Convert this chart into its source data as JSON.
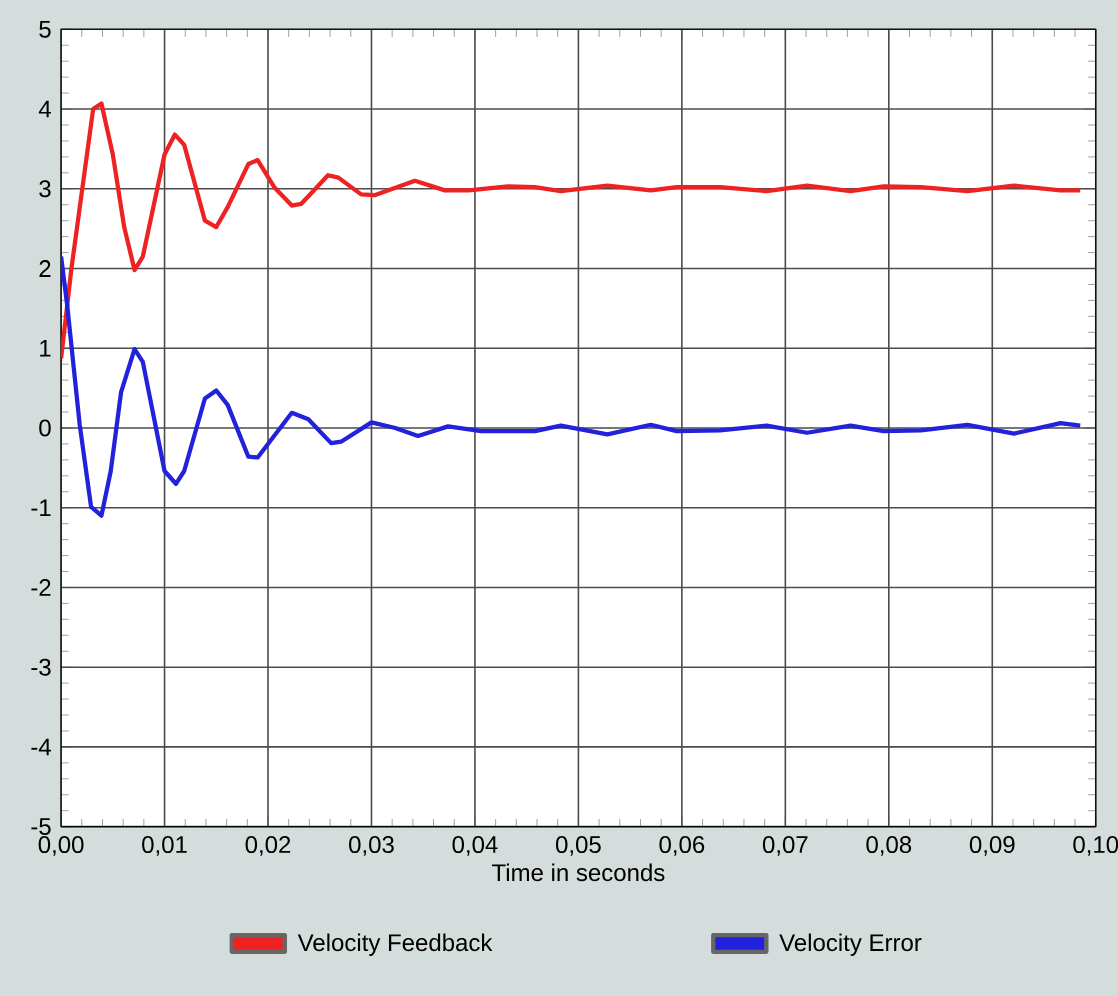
{
  "chart_data": {
    "type": "line",
    "xlabel": "Time in seconds",
    "xlim": [
      0,
      0.1
    ],
    "ylim": [
      -5,
      5
    ],
    "xticks": [
      {
        "value": 0,
        "label": "0,00"
      },
      {
        "value": 0.01,
        "label": "0,01"
      },
      {
        "value": 0.02,
        "label": "0,02"
      },
      {
        "value": 0.03,
        "label": "0,03"
      },
      {
        "value": 0.04,
        "label": "0,04"
      },
      {
        "value": 0.05,
        "label": "0,05"
      },
      {
        "value": 0.06,
        "label": "0,06"
      },
      {
        "value": 0.07,
        "label": "0,07"
      },
      {
        "value": 0.08,
        "label": "0,08"
      },
      {
        "value": 0.09,
        "label": "0,09"
      },
      {
        "value": 0.1,
        "label": "0,10"
      }
    ],
    "yticks": [
      -5,
      -4,
      -3,
      -2,
      -1,
      0,
      1,
      2,
      3,
      4,
      5
    ],
    "grid": true,
    "legend": "bottom",
    "series": [
      {
        "name": "Velocity Feedback",
        "color": "#ee2222",
        "x": [
          0,
          0.001,
          0.0031,
          0.0039,
          0.005,
          0.0061,
          0.0071,
          0.0079,
          0.01,
          0.011,
          0.0119,
          0.0139,
          0.015,
          0.0161,
          0.0181,
          0.019,
          0.0206,
          0.0223,
          0.0232,
          0.0258,
          0.0268,
          0.029,
          0.0303,
          0.0342,
          0.0371,
          0.0394,
          0.0432,
          0.0458,
          0.0483,
          0.0528,
          0.057,
          0.0595,
          0.0637,
          0.0682,
          0.0721,
          0.0763,
          0.0795,
          0.0831,
          0.0876,
          0.0921,
          0.0966,
          0.0985
        ],
        "values": [
          0.87,
          2.0,
          4.0,
          4.07,
          3.43,
          2.52,
          1.98,
          2.15,
          3.43,
          3.68,
          3.55,
          2.6,
          2.52,
          2.77,
          3.31,
          3.36,
          3.02,
          2.79,
          2.81,
          3.17,
          3.14,
          2.93,
          2.92,
          3.1,
          2.98,
          2.98,
          3.03,
          3.02,
          2.97,
          3.04,
          2.98,
          3.02,
          3.02,
          2.97,
          3.04,
          2.97,
          3.03,
          3.02,
          2.97,
          3.04,
          2.98,
          2.98
        ]
      },
      {
        "name": "Velocity Error",
        "color": "#2222dd",
        "x": [
          0,
          0.0006,
          0.0018,
          0.0029,
          0.0039,
          0.0048,
          0.0058,
          0.0071,
          0.0079,
          0.01,
          0.0111,
          0.0119,
          0.0139,
          0.015,
          0.0161,
          0.0181,
          0.019,
          0.0223,
          0.0239,
          0.0261,
          0.0271,
          0.03,
          0.0323,
          0.0345,
          0.0374,
          0.0406,
          0.0458,
          0.0483,
          0.0528,
          0.057,
          0.0595,
          0.0637,
          0.0682,
          0.0721,
          0.0763,
          0.0795,
          0.0831,
          0.0876,
          0.0921,
          0.0966,
          0.0985
        ],
        "values": [
          2.15,
          1.53,
          0.04,
          -0.99,
          -1.1,
          -0.54,
          0.45,
          0.99,
          0.83,
          -0.54,
          -0.7,
          -0.54,
          0.37,
          0.47,
          0.29,
          -0.36,
          -0.37,
          0.19,
          0.11,
          -0.19,
          -0.17,
          0.07,
          0,
          -0.1,
          0.02,
          -0.04,
          -0.04,
          0.03,
          -0.08,
          0.04,
          -0.04,
          -0.03,
          0.03,
          -0.06,
          0.03,
          -0.04,
          -0.03,
          0.04,
          -0.07,
          0.06,
          0.03
        ]
      }
    ]
  }
}
